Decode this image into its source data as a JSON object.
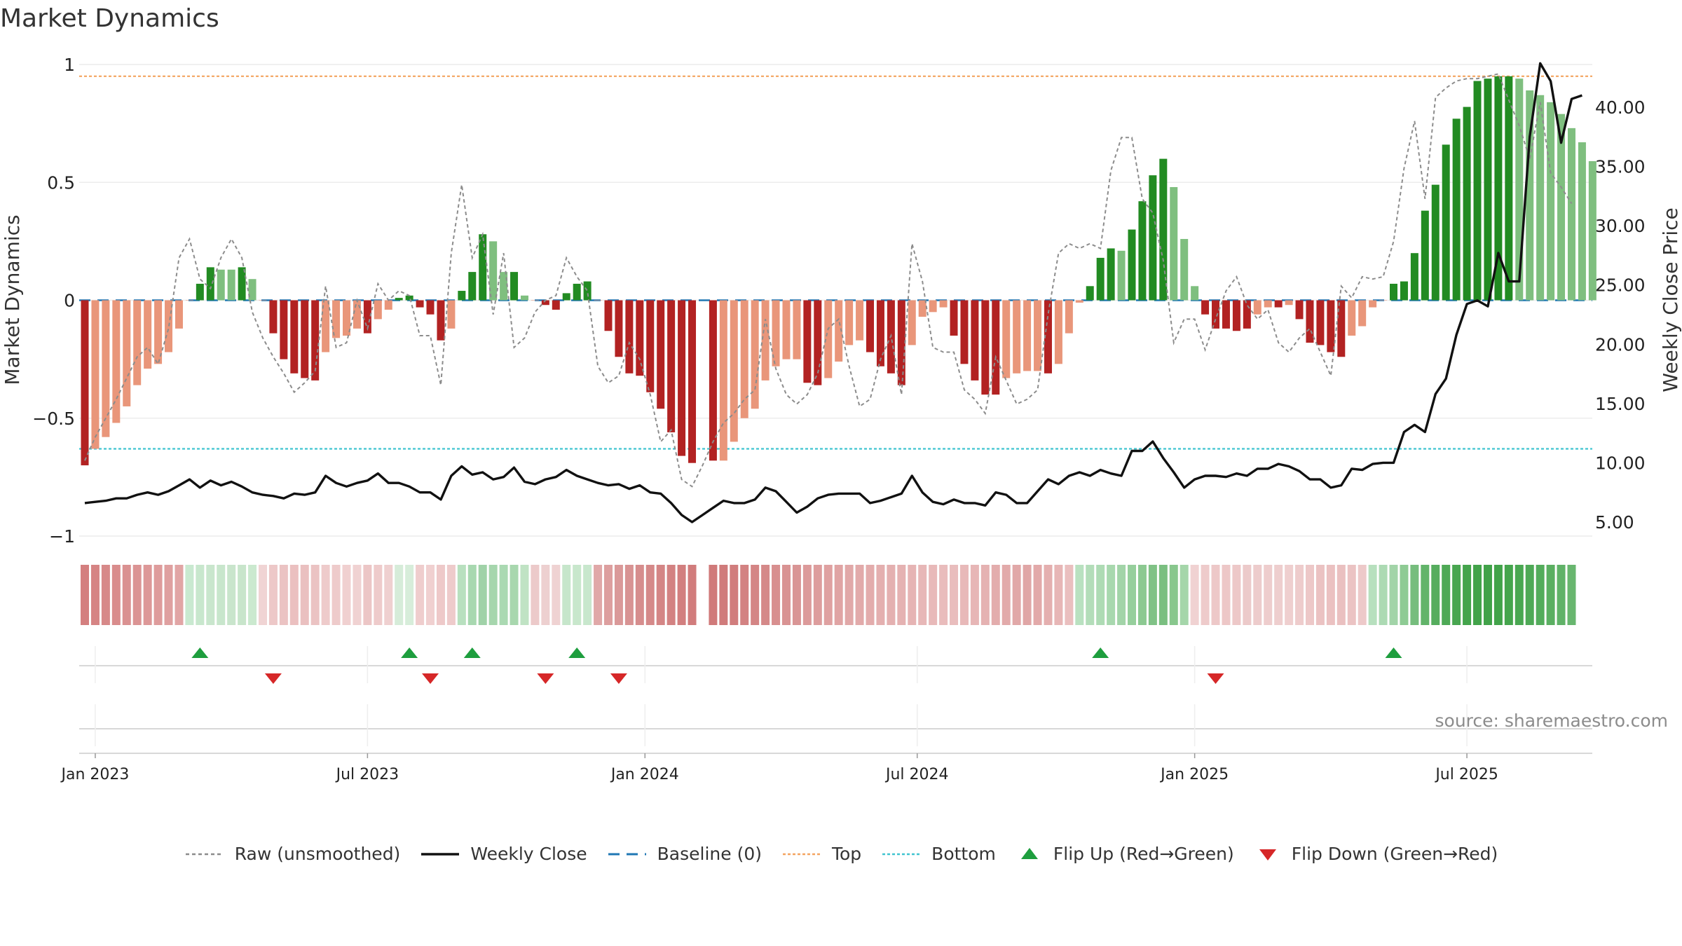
{
  "title": "Market Dynamics",
  "source": "source: sharemaestro.com",
  "colors": {
    "strong_red": "#b22222",
    "weak_red": "#e9967a",
    "strong_green": "#228b22",
    "weak_green": "#7fbf7f",
    "raw": "#8c8c8c",
    "close": "#111111",
    "baseline": "#1f77b4",
    "top": "#f4a460",
    "bottom": "#40c4d0",
    "flip_up": "#1e9e3e",
    "flip_down": "#d62728"
  },
  "legend": [
    {
      "key": "raw",
      "label": "Raw (unsmoothed)"
    },
    {
      "key": "close",
      "label": "Weekly Close"
    },
    {
      "key": "baseline",
      "label": "Baseline (0)"
    },
    {
      "key": "top",
      "label": "Top"
    },
    {
      "key": "bottom",
      "label": "Bottom"
    },
    {
      "key": "flip_up",
      "label": "Flip Up (Red→Green)"
    },
    {
      "key": "flip_down",
      "label": "Flip Down (Green→Red)"
    }
  ],
  "chart_data": {
    "type": "bar",
    "ylabel_left": "Market Dynamics",
    "ylabel_right": "Weekly Close Price",
    "ylim_left": [
      -1,
      1
    ],
    "ylim_right": [
      2.5,
      44.5
    ],
    "yticks_left": [
      {
        "v": 1,
        "label": "1"
      },
      {
        "v": 0.5,
        "label": "0.5"
      },
      {
        "v": 0,
        "label": "0"
      },
      {
        "v": -0.5,
        "label": "−0.5"
      },
      {
        "v": -1,
        "label": "−1"
      }
    ],
    "yticks_right": [
      {
        "v": 5,
        "label": "5.00"
      },
      {
        "v": 10,
        "label": "10.00"
      },
      {
        "v": 15,
        "label": "15.00"
      },
      {
        "v": 20,
        "label": "20.00"
      },
      {
        "v": 25,
        "label": "25.00"
      },
      {
        "v": 30,
        "label": "30.00"
      },
      {
        "v": 35,
        "label": "35.00"
      },
      {
        "v": 40,
        "label": "40.00"
      }
    ],
    "xticks": [
      {
        "week": 1,
        "label": "Jan 2023"
      },
      {
        "week": 27,
        "label": "Jul 2023"
      },
      {
        "week": 53.5,
        "label": "Jan 2024"
      },
      {
        "week": 79.5,
        "label": "Jul 2024"
      },
      {
        "week": 106,
        "label": "Jan 2025"
      },
      {
        "week": 132,
        "label": "Jul 2025"
      }
    ],
    "top_level": 0.95,
    "bottom_level": -0.63,
    "baseline": 0,
    "gap_weeks": [
      59
    ],
    "weeks": 145,
    "values": [
      -0.7,
      -0.63,
      -0.58,
      -0.52,
      -0.45,
      -0.36,
      -0.29,
      -0.27,
      -0.22,
      -0.12,
      0.0,
      0.07,
      0.14,
      0.13,
      0.13,
      0.14,
      0.09,
      0.0,
      -0.14,
      -0.25,
      -0.31,
      -0.33,
      -0.34,
      -0.22,
      -0.16,
      -0.15,
      -0.12,
      -0.14,
      -0.08,
      -0.04,
      0.01,
      0.02,
      -0.03,
      -0.06,
      -0.17,
      -0.12,
      0.04,
      0.12,
      0.28,
      0.25,
      0.12,
      0.12,
      0.02,
      0.0,
      -0.02,
      -0.04,
      0.03,
      0.07,
      0.08,
      0.0,
      -0.13,
      -0.24,
      -0.31,
      -0.32,
      -0.39,
      -0.46,
      -0.56,
      -0.66,
      -0.69,
      0.0,
      -0.68,
      -0.68,
      -0.6,
      -0.5,
      -0.46,
      -0.34,
      -0.28,
      -0.25,
      -0.25,
      -0.35,
      -0.36,
      -0.33,
      -0.26,
      -0.19,
      -0.17,
      -0.22,
      -0.28,
      -0.31,
      -0.36,
      -0.19,
      -0.07,
      -0.05,
      -0.03,
      -0.15,
      -0.27,
      -0.34,
      -0.4,
      -0.4,
      -0.33,
      -0.31,
      -0.3,
      -0.3,
      -0.31,
      -0.27,
      -0.14,
      -0.01,
      0.06,
      0.18,
      0.22,
      0.21,
      0.3,
      0.42,
      0.53,
      0.6,
      0.48,
      0.26,
      0.06,
      -0.06,
      -0.12,
      -0.12,
      -0.13,
      -0.12,
      -0.06,
      -0.03,
      -0.03,
      -0.02,
      -0.08,
      -0.18,
      -0.19,
      -0.22,
      -0.24,
      -0.15,
      -0.11,
      -0.03,
      0.0,
      0.07,
      0.08,
      0.2,
      0.38,
      0.49,
      0.66,
      0.77,
      0.82,
      0.93,
      0.94,
      0.95,
      0.95,
      0.94,
      0.89,
      0.87,
      0.84,
      0.79,
      0.73,
      0.67,
      0.59
    ],
    "bar_categories": [
      "sr",
      "wr",
      "wr",
      "wr",
      "wr",
      "wr",
      "wr",
      "wr",
      "wr",
      "wr",
      "wr",
      "sg",
      "sg",
      "wg",
      "wg",
      "sg",
      "wg",
      "wr",
      "sr",
      "sr",
      "sr",
      "sr",
      "sr",
      "wr",
      "wr",
      "wr",
      "wr",
      "sr",
      "wr",
      "wr",
      "sg",
      "sg",
      "sr",
      "sr",
      "sr",
      "wr",
      "sg",
      "sg",
      "sg",
      "wg",
      "wg",
      "sg",
      "wg",
      "wr",
      "sr",
      "sr",
      "sg",
      "sg",
      "sg",
      "wr",
      "sr",
      "sr",
      "sr",
      "sr",
      "sr",
      "sr",
      "sr",
      "sr",
      "sr",
      "wr",
      "sr",
      "wr",
      "wr",
      "wr",
      "wr",
      "wr",
      "wr",
      "wr",
      "wr",
      "sr",
      "sr",
      "wr",
      "wr",
      "wr",
      "wr",
      "sr",
      "sr",
      "sr",
      "sr",
      "wr",
      "wr",
      "wr",
      "wr",
      "sr",
      "sr",
      "sr",
      "sr",
      "sr",
      "wr",
      "wr",
      "wr",
      "wr",
      "sr",
      "wr",
      "wr",
      "wr",
      "sg",
      "sg",
      "sg",
      "wg",
      "sg",
      "sg",
      "sg",
      "sg",
      "wg",
      "wg",
      "wg",
      "sr",
      "sr",
      "sr",
      "sr",
      "sr",
      "wr",
      "wr",
      "sr",
      "wr",
      "sr",
      "sr",
      "sr",
      "sr",
      "sr",
      "wr",
      "wr",
      "wr",
      "wr",
      "sg",
      "sg",
      "sg",
      "sg",
      "sg",
      "sg",
      "sg",
      "sg",
      "sg",
      "sg",
      "sg",
      "sg",
      "wg",
      "wg",
      "wg",
      "wg",
      "wg",
      "wg",
      "wg",
      "wg"
    ],
    "raw": [
      -0.68,
      -0.58,
      -0.5,
      -0.42,
      -0.33,
      -0.24,
      -0.2,
      -0.27,
      -0.12,
      0.18,
      0.26,
      0.09,
      0.05,
      0.18,
      0.26,
      0.18,
      -0.05,
      -0.16,
      -0.24,
      -0.31,
      -0.39,
      -0.35,
      -0.3,
      0.06,
      -0.2,
      -0.18,
      0.0,
      -0.12,
      0.07,
      0.0,
      0.04,
      0.02,
      -0.15,
      -0.15,
      -0.36,
      0.2,
      0.49,
      0.18,
      0.28,
      -0.06,
      0.2,
      -0.2,
      -0.16,
      -0.05,
      0.0,
      0.02,
      0.18,
      0.1,
      0.04,
      -0.28,
      -0.35,
      -0.32,
      -0.18,
      -0.25,
      -0.4,
      -0.6,
      -0.55,
      -0.76,
      -0.79,
      -0.7,
      -0.6,
      -0.52,
      -0.48,
      -0.42,
      -0.38,
      -0.08,
      -0.29,
      -0.4,
      -0.44,
      -0.4,
      -0.31,
      -0.12,
      -0.08,
      -0.28,
      -0.45,
      -0.42,
      -0.25,
      -0.15,
      -0.4,
      0.24,
      0.08,
      -0.2,
      -0.22,
      -0.22,
      -0.38,
      -0.42,
      -0.48,
      -0.24,
      -0.34,
      -0.44,
      -0.42,
      -0.38,
      -0.06,
      0.2,
      0.24,
      0.22,
      0.24,
      0.22,
      0.55,
      0.69,
      0.69,
      0.43,
      0.37,
      0.17,
      -0.18,
      -0.08,
      -0.08,
      -0.21,
      -0.08,
      0.04,
      0.1,
      -0.02,
      -0.08,
      -0.04,
      -0.18,
      -0.22,
      -0.16,
      -0.12,
      -0.22,
      -0.32,
      0.06,
      0.01,
      0.1,
      0.09,
      0.1,
      0.25,
      0.56,
      0.76,
      0.43,
      0.86,
      0.9,
      0.93,
      0.94,
      0.94,
      0.95,
      0.96,
      0.85,
      0.74,
      0.6,
      0.84,
      0.54,
      0.48,
      0.41
    ],
    "weekly_close": [
      6.6,
      6.7,
      6.8,
      7.0,
      7.0,
      7.3,
      7.5,
      7.3,
      7.6,
      8.1,
      8.6,
      7.9,
      8.5,
      8.1,
      8.4,
      8.0,
      7.5,
      7.3,
      7.2,
      7.0,
      7.4,
      7.3,
      7.5,
      8.9,
      8.3,
      8.0,
      8.3,
      8.5,
      9.1,
      8.3,
      8.3,
      8.0,
      7.5,
      7.5,
      6.9,
      8.9,
      9.7,
      9.0,
      9.2,
      8.6,
      8.8,
      9.6,
      8.4,
      8.2,
      8.6,
      8.8,
      9.4,
      8.9,
      8.6,
      8.3,
      8.1,
      8.2,
      7.8,
      8.1,
      7.5,
      7.4,
      6.6,
      5.6,
      5.0,
      5.6,
      6.2,
      6.8,
      6.6,
      6.6,
      6.9,
      7.9,
      7.6,
      6.7,
      5.8,
      6.3,
      7.0,
      7.3,
      7.4,
      7.4,
      7.4,
      6.6,
      6.8,
      7.1,
      7.4,
      8.9,
      7.5,
      6.7,
      6.5,
      6.9,
      6.6,
      6.6,
      6.4,
      7.5,
      7.3,
      6.6,
      6.6,
      7.6,
      8.6,
      8.2,
      8.9,
      9.2,
      8.9,
      9.4,
      9.1,
      8.9,
      11.0,
      11.0,
      11.8,
      10.4,
      9.2,
      7.9,
      8.6,
      8.9,
      8.9,
      8.8,
      9.1,
      8.9,
      9.5,
      9.5,
      9.9,
      9.7,
      9.3,
      8.6,
      8.6,
      7.9,
      8.1,
      9.5,
      9.4,
      9.9,
      10.0,
      10.0,
      12.6,
      13.2,
      12.6,
      15.8,
      17.1,
      20.8,
      23.4,
      23.7,
      23.2,
      27.7,
      25.3,
      25.3,
      37.5,
      43.7,
      42.2,
      37.0,
      40.7,
      41.0
    ],
    "strip_colors": [
      "#d47f7f",
      "#d68484",
      "#d78989",
      "#d98c8c",
      "#da9191",
      "#db9494",
      "#dd9898",
      "#de9c9c",
      "#dfa0a0",
      "#e1a5a5",
      "#c9e9d0",
      "#c8e7cd",
      "#c9e6cd",
      "#c8e6cc",
      "#c9e5cc",
      "#c8e5cb",
      "#cbe9cf",
      "#f0d4d4",
      "#edc8c8",
      "#ebc3c3",
      "#ebc0c0",
      "#eac0c0",
      "#ebc3c3",
      "#eecbcb",
      "#eecbcb",
      "#f0d0d0",
      "#f0d2d2",
      "#ecc6c6",
      "#eecbcb",
      "#efd0d0",
      "#d6ecd9",
      "#d7edda",
      "#efcdcd",
      "#f0d0d0",
      "#eec9c9",
      "#eecbcb",
      "#b8e0bf",
      "#a8d8b0",
      "#a0d2a8",
      "#a6d6ad",
      "#aad9b2",
      "#a8d7ae",
      "#c0e3c4",
      "#eccaca",
      "#edd0d0",
      "#efd2d2",
      "#c6e6cb",
      "#c8e7cc",
      "#c8e7cd",
      "#e0a8a8",
      "#dd9f9f",
      "#da9999",
      "#d89393",
      "#d68d8d",
      "#d58989",
      "#d48585",
      "#d38282",
      "#d27f7f",
      "#d17c7c",
      "#ffffff",
      "#d07a7a",
      "#d07b7b",
      "#d17d7d",
      "#d38282",
      "#d48585",
      "#d58989",
      "#d88f8f",
      "#d99393",
      "#d99595",
      "#dc9a9a",
      "#dd9d9d",
      "#dfa1a1",
      "#e0a4a4",
      "#e1a8a8",
      "#e2aaaa",
      "#e3acac",
      "#e4afaf",
      "#e4b0b0",
      "#e5b2b2",
      "#e6b4b4",
      "#e7b7b7",
      "#e8b9b9",
      "#e9bcbc",
      "#e9bdbd",
      "#e8b9b9",
      "#e7b6b6",
      "#e5b2b2",
      "#e3adad",
      "#e2aaaa",
      "#e1a8a8",
      "#e0a6a6",
      "#e2a9a9",
      "#e4afaf",
      "#e7b6b6",
      "#eabfbf",
      "#b9e1c0",
      "#b3ddb9",
      "#aedbb4",
      "#a8d8ae",
      "#a2d4a8",
      "#96cf9c",
      "#8cc991",
      "#80c286",
      "#7abf80",
      "#88c78d",
      "#a5d6aa",
      "#f0d2d2",
      "#eecbcb",
      "#edc8c8",
      "#edc7c7",
      "#edc8c8",
      "#eccaca",
      "#edcccc",
      "#eecdcd",
      "#eecece",
      "#efcfcf",
      "#eecccc",
      "#edc8c8",
      "#ebc2c2",
      "#ebc1c1",
      "#eac0c0",
      "#ebc3c3",
      "#edc9c9",
      "#b7e0be",
      "#acdab3",
      "#a2d4a8",
      "#8ecb94",
      "#76bd7d",
      "#62b46a",
      "#56ad5e",
      "#4ea956",
      "#48a650",
      "#44a44c",
      "#42a34a",
      "#41a249",
      "#42a34a",
      "#45a54d",
      "#49a751",
      "#4ea956",
      "#53ac5b",
      "#5aaf61",
      "#60b268",
      "#68b66f"
    ],
    "flips": [
      {
        "week": 11,
        "dir": "up"
      },
      {
        "week": 18,
        "dir": "down"
      },
      {
        "week": 31,
        "dir": "up"
      },
      {
        "week": 33,
        "dir": "down"
      },
      {
        "week": 37,
        "dir": "up"
      },
      {
        "week": 44,
        "dir": "down"
      },
      {
        "week": 47,
        "dir": "up"
      },
      {
        "week": 51,
        "dir": "down"
      },
      {
        "week": 97,
        "dir": "up"
      },
      {
        "week": 108,
        "dir": "down"
      },
      {
        "week": 125,
        "dir": "up"
      }
    ]
  }
}
